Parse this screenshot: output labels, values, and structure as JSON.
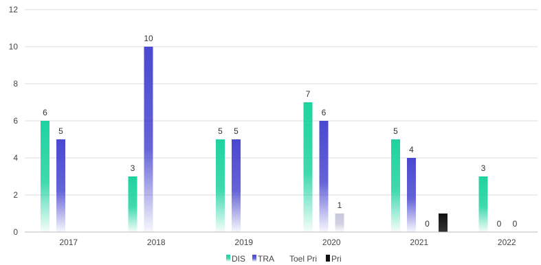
{
  "chart_data": {
    "type": "bar",
    "categories": [
      "2017",
      "2018",
      "2019",
      "2020",
      "2021",
      "2022"
    ],
    "series": [
      {
        "name": "DIS",
        "values": [
          6,
          3,
          5,
          7,
          5,
          3
        ],
        "color": "#1ED3A0",
        "labels": [
          true,
          true,
          true,
          true,
          true,
          true
        ]
      },
      {
        "name": "TRA",
        "values": [
          5,
          10,
          5,
          6,
          4,
          0
        ],
        "color": "#4A48D0",
        "labels": [
          true,
          true,
          true,
          true,
          true,
          true
        ]
      },
      {
        "name": "Toel Pri",
        "values": [
          null,
          null,
          null,
          1,
          0,
          0
        ],
        "color": "#C8C8DC",
        "labels": [
          false,
          false,
          false,
          true,
          true,
          true
        ]
      },
      {
        "name": "Pri",
        "values": [
          null,
          null,
          null,
          null,
          1,
          null
        ],
        "color": "#111111",
        "labels": [
          false,
          false,
          false,
          false,
          false,
          false
        ]
      }
    ],
    "ylim": [
      0,
      12
    ],
    "yticks": [
      "0",
      "2",
      "4",
      "6",
      "8",
      "10",
      "12"
    ],
    "grid": true,
    "legend": "bottom"
  }
}
